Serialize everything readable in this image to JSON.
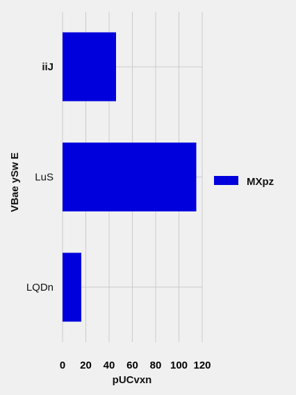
{
  "chart_data": {
    "type": "bar",
    "orientation": "horizontal",
    "categories": [
      "iiJ",
      "LuS",
      "LQDn"
    ],
    "series": [
      {
        "name": "MXpz",
        "values": [
          46,
          115,
          16
        ],
        "color": "#0000dd"
      }
    ],
    "xlabel": "pUCvxn",
    "ylabel": "VBae ySw E",
    "xlim": [
      0,
      120
    ],
    "xticks": [
      0,
      20,
      40,
      60,
      80,
      100,
      120
    ],
    "grid": true,
    "legend_position": "right"
  }
}
